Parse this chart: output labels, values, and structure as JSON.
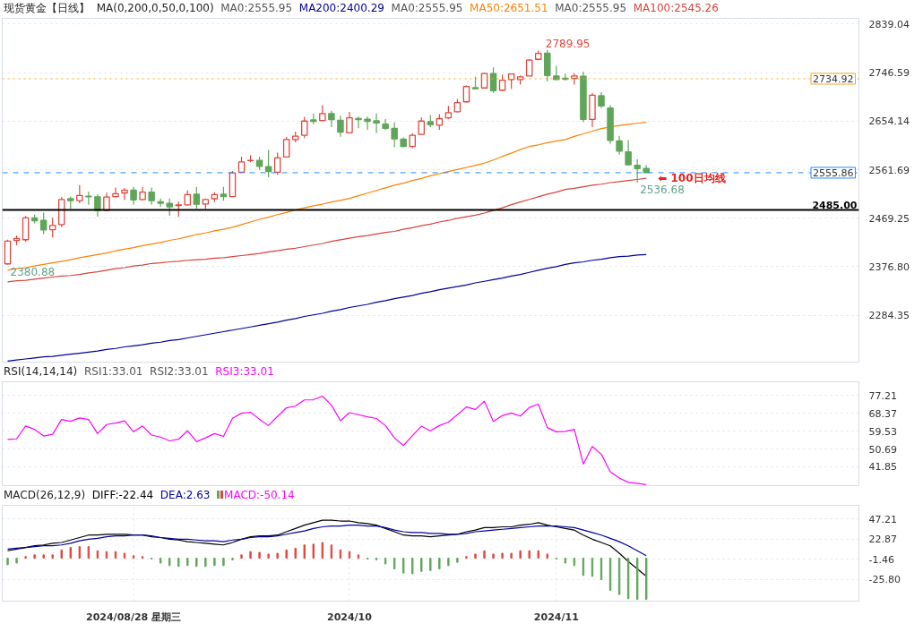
{
  "chart_data": [
    {
      "type": "candlestick",
      "title": "现货黄金【日线】",
      "legend_title": "MA(0,200,0,50,0,100)",
      "legend": "top",
      "tick_labels": "y",
      "grid": true,
      "annotations": [
        "MA0:2555.95",
        "MA0:2555.95",
        "MA0:2555.95",
        "2789.95",
        "2380.88",
        "2536.68",
        "⬅ 100日均线"
      ],
      "categories": [
        null,
        null,
        null,
        null,
        null,
        null,
        null,
        null,
        null,
        null,
        null,
        null,
        null,
        null,
        null,
        null,
        null,
        null,
        null,
        null,
        null,
        null,
        null,
        null,
        null,
        null,
        null,
        null,
        null,
        null,
        null,
        null,
        null,
        null,
        null,
        null,
        null,
        null,
        null,
        null,
        null,
        null,
        null,
        null,
        null,
        null,
        null,
        null,
        null,
        null,
        null,
        null,
        null,
        null,
        null,
        null,
        null,
        null,
        null,
        null,
        null,
        null,
        null,
        null,
        null,
        null,
        null,
        null,
        null,
        null,
        null,
        null
      ],
      "ohlc": [
        [
          2382.2,
          2428.3,
          2380.88,
          2425.6
        ],
        [
          2426.7,
          2436.3,
          2417.7,
          2430.4
        ],
        [
          2428.3,
          2473.4,
          2424.6,
          2469.7
        ],
        [
          2469.7,
          2476.0,
          2459.6,
          2464.4
        ],
        [
          2464.9,
          2479.7,
          2438.9,
          2446.9
        ],
        [
          2447.4,
          2470.2,
          2432.5,
          2455.4
        ],
        [
          2457.0,
          2509.4,
          2452.2,
          2504.7
        ],
        [
          2506.3,
          2510.5,
          2487.2,
          2502.6
        ],
        [
          2502.6,
          2532.3,
          2497.8,
          2512.6
        ],
        [
          2511.0,
          2519.5,
          2494.6,
          2510.0
        ],
        [
          2510.0,
          2514.8,
          2472.3,
          2484.0
        ],
        [
          2484.0,
          2517.9,
          2483.0,
          2509.4
        ],
        [
          2510.5,
          2527.5,
          2508.9,
          2515.8
        ],
        [
          2517.4,
          2526.4,
          2503.6,
          2522.7
        ],
        [
          2522.7,
          2529.1,
          2494.6,
          2504.1
        ],
        [
          2504.7,
          2528.5,
          2503.0,
          2519.0
        ],
        [
          2519.0,
          2527.5,
          2494.6,
          2502.6
        ],
        [
          2500.4,
          2506.8,
          2490.9,
          2497.8
        ],
        [
          2497.3,
          2506.8,
          2473.9,
          2490.9
        ],
        [
          2493.2,
          2501.0,
          2471.8,
          2494.4
        ],
        [
          2494.6,
          2522.7,
          2494.0,
          2514.2
        ],
        [
          2514.8,
          2529.1,
          2487.2,
          2495.7
        ],
        [
          2496.2,
          2506.8,
          2487.2,
          2504.7
        ],
        [
          2506.3,
          2518.5,
          2499.9,
          2514.2
        ],
        [
          2514.8,
          2529.1,
          2502.6,
          2510.5
        ],
        [
          2510.5,
          2559.3,
          2510.0,
          2555.6
        ],
        [
          2556.7,
          2586.4,
          2556.0,
          2576.3
        ],
        [
          2579.0,
          2589.5,
          2575.8,
          2579.4
        ],
        [
          2579.4,
          2586.4,
          2561.4,
          2567.8
        ],
        [
          2567.3,
          2599.1,
          2547.1,
          2558.3
        ],
        [
          2556.7,
          2594.3,
          2551.9,
          2584.2
        ],
        [
          2585.8,
          2624.0,
          2585.0,
          2619.2
        ],
        [
          2619.2,
          2634.1,
          2613.9,
          2625.6
        ],
        [
          2627.2,
          2662.2,
          2621.9,
          2654.3
        ],
        [
          2656.4,
          2668.6,
          2648.4,
          2653.7
        ],
        [
          2655.3,
          2684.5,
          2653.7,
          2668.6
        ],
        [
          2668.6,
          2673.9,
          2642.6,
          2656.9
        ],
        [
          2655.8,
          2664.3,
          2624.5,
          2633.0
        ],
        [
          2632.0,
          2671.7,
          2631.0,
          2660.6
        ],
        [
          2659.0,
          2662.7,
          2640.5,
          2657.0
        ],
        [
          2658.0,
          2662.7,
          2637.8,
          2653.7
        ],
        [
          2654.8,
          2668.6,
          2631.4,
          2650.5
        ],
        [
          2648.4,
          2658.0,
          2637.8,
          2640.5
        ],
        [
          2640.5,
          2651.6,
          2604.4,
          2620.3
        ],
        [
          2619.8,
          2623.0,
          2604.4,
          2606.0
        ],
        [
          2606.0,
          2630.9,
          2602.8,
          2627.2
        ],
        [
          2628.8,
          2661.1,
          2628.0,
          2654.3
        ],
        [
          2653.2,
          2665.9,
          2642.6,
          2647.4
        ],
        [
          2646.3,
          2667.5,
          2637.8,
          2659.0
        ],
        [
          2660.6,
          2683.4,
          2658.0,
          2670.2
        ],
        [
          2671.8,
          2696.1,
          2671.0,
          2689.3
        ],
        [
          2690.9,
          2722.7,
          2690.0,
          2720.0
        ],
        [
          2717.9,
          2738.6,
          2714.7,
          2715.8
        ],
        [
          2717.4,
          2746.5,
          2717.0,
          2744.9
        ],
        [
          2744.9,
          2756.6,
          2707.8,
          2712.1
        ],
        [
          2713.1,
          2742.8,
          2712.0,
          2732.2
        ],
        [
          2733.3,
          2744.0,
          2715.8,
          2743.9
        ],
        [
          2733.3,
          2741.2,
          2723.7,
          2738.6
        ],
        [
          2740.2,
          2772.5,
          2740.0,
          2770.4
        ],
        [
          2772.0,
          2788.4,
          2770.4,
          2783.1
        ],
        [
          2783.6,
          2789.95,
          2730.1,
          2741.2
        ],
        [
          2740.2,
          2759.8,
          2732.2,
          2733.3
        ],
        [
          2735.9,
          2744.9,
          2731.7,
          2733.8
        ],
        [
          2735.4,
          2745.5,
          2723.7,
          2740.2
        ],
        [
          2739.6,
          2748.6,
          2652.1,
          2657.4
        ],
        [
          2657.4,
          2707.8,
          2643.1,
          2703.6
        ],
        [
          2702.5,
          2709.4,
          2679.2,
          2682.9
        ],
        [
          2679.2,
          2684.5,
          2611.3,
          2617.6
        ],
        [
          2616.6,
          2626.1,
          2590.1,
          2597.0
        ],
        [
          2595.4,
          2618.2,
          2570.5,
          2571.0
        ],
        [
          2569.9,
          2581.6,
          2536.68,
          2563.6
        ],
        [
          2564.1,
          2570.4,
          2555.5,
          2555.86
        ]
      ],
      "colors": [
        "#e2463c",
        "#e2463c",
        "#e2463c",
        "#5fa65a",
        "#5fa65a",
        "#e2463c",
        "#e2463c",
        "#5fa65a",
        "#e2463c",
        "#5fa65a",
        "#5fa65a",
        "#e2463c",
        "#e2463c",
        "#e2463c",
        "#5fa65a",
        "#e2463c",
        "#5fa65a",
        "#5fa65a",
        "#5fa65a",
        "#e2463c",
        "#e2463c",
        "#5fa65a",
        "#e2463c",
        "#e2463c",
        "#5fa65a",
        "#e2463c",
        "#e2463c",
        "#e2463c",
        "#5fa65a",
        "#5fa65a",
        "#e2463c",
        "#e2463c",
        "#e2463c",
        "#e2463c",
        "#5fa65a",
        "#e2463c",
        "#5fa65a",
        "#5fa65a",
        "#e2463c",
        "#5fa65a",
        "#5fa65a",
        "#5fa65a",
        "#5fa65a",
        "#5fa65a",
        "#5fa65a",
        "#e2463c",
        "#e2463c",
        "#5fa65a",
        "#e2463c",
        "#e2463c",
        "#e2463c",
        "#e2463c",
        "#5fa65a",
        "#e2463c",
        "#5fa65a",
        "#e2463c",
        "#e2463c",
        "#e2463c",
        "#e2463c",
        "#e2463c",
        "#5fa65a",
        "#5fa65a",
        "#5fa65a",
        "#e2463c",
        "#5fa65a",
        "#e2463c",
        "#5fa65a",
        "#5fa65a",
        "#5fa65a",
        "#5fa65a",
        "#5fa65a",
        "#5fa65a"
      ],
      "series": [
        {
          "name": "MA200:2400.29",
          "type": "line",
          "color": "#000099",
          "values": [
            2197,
            2199,
            2201,
            2203,
            2205,
            2206,
            2208,
            2210,
            2212,
            2214,
            2216,
            2219,
            2221,
            2224,
            2226,
            2228,
            2231,
            2233,
            2236,
            2238,
            2241,
            2244,
            2247,
            2250,
            2253,
            2256,
            2259,
            2262,
            2265,
            2268,
            2271,
            2275,
            2278,
            2282,
            2285,
            2288,
            2292,
            2295,
            2299,
            2302,
            2305,
            2309,
            2312,
            2316,
            2319,
            2322,
            2326,
            2329,
            2333,
            2336,
            2339,
            2342,
            2346,
            2349,
            2352,
            2355,
            2359,
            2362,
            2366,
            2370,
            2374,
            2377,
            2381,
            2384,
            2386,
            2389,
            2391,
            2394,
            2396,
            2397,
            2399,
            2400
          ]
        },
        {
          "name": "MA50:2651.51",
          "type": "line",
          "color": "#ff8000",
          "values": [
            2370,
            2373,
            2375,
            2378,
            2381,
            2384,
            2387,
            2390,
            2394,
            2397,
            2400,
            2403,
            2407,
            2410,
            2413,
            2417,
            2420,
            2423,
            2427,
            2430,
            2434,
            2438,
            2441,
            2445,
            2448,
            2452,
            2457,
            2462,
            2467,
            2471,
            2476,
            2480,
            2485,
            2489,
            2493,
            2496,
            2500,
            2503,
            2507,
            2512,
            2517,
            2522,
            2527,
            2532,
            2536,
            2541,
            2545,
            2550,
            2554,
            2558,
            2562,
            2566,
            2570,
            2574,
            2580,
            2587,
            2593,
            2600,
            2606,
            2609,
            2613,
            2616,
            2619,
            2625,
            2630,
            2635,
            2640,
            2643,
            2646,
            2648,
            2650,
            2652
          ]
        },
        {
          "name": "MA100:2545.26",
          "type": "line",
          "color": "#d9433b",
          "values": [
            2348,
            2350,
            2351,
            2353,
            2355,
            2357,
            2359,
            2360,
            2362,
            2365,
            2367,
            2370,
            2373,
            2375,
            2378,
            2380,
            2383,
            2384,
            2386,
            2387,
            2389,
            2390,
            2391,
            2393,
            2394,
            2396,
            2398,
            2400,
            2402,
            2405,
            2407,
            2410,
            2412,
            2415,
            2418,
            2421,
            2425,
            2428,
            2431,
            2434,
            2436,
            2439,
            2442,
            2444,
            2448,
            2451,
            2455,
            2458,
            2462,
            2465,
            2469,
            2472,
            2475,
            2479,
            2484,
            2489,
            2495,
            2500,
            2505,
            2510,
            2515,
            2519,
            2524,
            2526,
            2529,
            2532,
            2534,
            2537,
            2539,
            2541,
            2543,
            2545.3
          ]
        }
      ],
      "ylim": [
        2195,
        2850
      ],
      "yticks": [
        2284.35,
        {
          "value": 2376.8,
          "label": "2376.80"
        },
        2469.25,
        2561.69,
        2654.14,
        2746.59,
        2839.04
      ],
      "ref_lines": [
        {
          "axis": "y",
          "value": 2485,
          "label": "2485.00",
          "color": "#000000",
          "line_style": "solid"
        },
        {
          "axis": "y",
          "value": 2555.86,
          "label": "2555.86",
          "color": "#1e8cff",
          "line_style": "dashed"
        },
        {
          "axis": "y",
          "value": 2734.92,
          "label": "2734.92",
          "color": "#f5a623",
          "line_style": "dotted"
        }
      ]
    },
    {
      "type": "line",
      "title": "RSI(14,14,14)",
      "legend": "top",
      "tick_labels": "y",
      "grid": true,
      "annotations": [
        "RSI1:33.01",
        "RSI2:33.01"
      ],
      "categories": [
        null,
        null,
        null,
        null,
        null,
        null,
        null,
        null,
        null,
        null,
        null,
        null,
        null,
        null,
        null,
        null,
        null,
        null,
        null,
        null,
        null,
        null,
        null,
        null,
        null,
        null,
        null,
        null,
        null,
        null,
        null,
        null,
        null,
        null,
        null,
        null,
        null,
        null,
        null,
        null,
        null,
        null,
        null,
        null,
        null,
        null,
        null,
        null,
        null,
        null,
        null,
        null,
        null,
        null,
        null,
        null,
        null,
        null,
        null,
        null,
        null,
        null,
        null,
        null,
        null,
        null,
        null,
        null,
        null,
        null,
        null,
        null
      ],
      "series": [
        {
          "name": "RSI3:33.01",
          "color": "#ff00ff",
          "values": [
            55.4,
            55.7,
            62.1,
            60.4,
            57.1,
            58.0,
            65.3,
            64.4,
            66.1,
            65.3,
            58.3,
            62.8,
            63.5,
            64.6,
            59.2,
            62.1,
            57.6,
            56.6,
            54.7,
            55.5,
            59.7,
            54.3,
            56.2,
            58.3,
            56.9,
            65.9,
            68.4,
            68.9,
            65.4,
            62.3,
            66.8,
            71.1,
            72.0,
            75.0,
            75.1,
            76.9,
            72.4,
            64.7,
            68.7,
            67.7,
            66.6,
            65.8,
            62.3,
            56.2,
            52.4,
            57.3,
            62.0,
            59.7,
            62.3,
            64.0,
            67.7,
            71.5,
            70.3,
            74.4,
            64.4,
            67.2,
            68.5,
            67.0,
            71.3,
            72.9,
            61.3,
            59.2,
            59.4,
            60.4,
            43.2,
            51.9,
            48.1,
            39.4,
            36.3,
            34.1,
            33.7,
            33.0
          ]
        }
      ],
      "ylim": [
        32.5,
        84
      ],
      "yticks": [
        41.85,
        50.69,
        59.53,
        68.37,
        77.21
      ]
    },
    {
      "type": "line",
      "title": "MACD(26,12,9)",
      "legend": "top",
      "grid": true,
      "categories": [
        null,
        null,
        null,
        null,
        null,
        null,
        null,
        null,
        null,
        null,
        null,
        null,
        null,
        null,
        "2024/08/28 星期三",
        null,
        null,
        null,
        null,
        null,
        null,
        null,
        null,
        null,
        null,
        null,
        null,
        null,
        null,
        null,
        null,
        null,
        null,
        null,
        null,
        null,
        null,
        null,
        "2024/10",
        null,
        null,
        null,
        null,
        null,
        null,
        null,
        null,
        null,
        null,
        null,
        null,
        null,
        null,
        null,
        null,
        null,
        null,
        null,
        null,
        null,
        null,
        "2024/11",
        null,
        null,
        null,
        null,
        null,
        null,
        null,
        null,
        null,
        null
      ],
      "series": [
        {
          "name": "DIFF:-22.44",
          "type": "line",
          "color": "#000000",
          "values": [
            9,
            11,
            13,
            15,
            16,
            18,
            19,
            22,
            25,
            28,
            28,
            29,
            29,
            29,
            28,
            28,
            26,
            25,
            23,
            22,
            20,
            19,
            18,
            17,
            16,
            19,
            23,
            26,
            27,
            27,
            28,
            32,
            36,
            40,
            43,
            46,
            46,
            45,
            45,
            43,
            42,
            40,
            36,
            32,
            28,
            27,
            27,
            26,
            27,
            28,
            29,
            32,
            34,
            37,
            37,
            38,
            38,
            40,
            41,
            43,
            40,
            38,
            36,
            34,
            28,
            23,
            19,
            15,
            6,
            -4,
            -13,
            -22
          ]
        },
        {
          "name": "DEA:2.63",
          "type": "line",
          "color": "#000099",
          "values": [
            11,
            12,
            13,
            14,
            15,
            15,
            16,
            18,
            21,
            23,
            24,
            26,
            27,
            27,
            28,
            28,
            27,
            25,
            24,
            23,
            23,
            22,
            21,
            21,
            20,
            22,
            23,
            25,
            26,
            26,
            27,
            29,
            31,
            33,
            36,
            38,
            39,
            39,
            40,
            40,
            39,
            39,
            37,
            34,
            32,
            31,
            31,
            30,
            30,
            29,
            29,
            30,
            32,
            33,
            34,
            35,
            36,
            37,
            38,
            39,
            39,
            39,
            38,
            37,
            34,
            31,
            28,
            24,
            20,
            15,
            9,
            3
          ]
        },
        {
          "name": "MACD:-50.14",
          "type": "bar",
          "color": "#ff00ff",
          "values": [
            -8,
            -6,
            2,
            4,
            4,
            4,
            10,
            13,
            14,
            14,
            9,
            8,
            8,
            6,
            3,
            2,
            -1,
            -6,
            -9,
            -10,
            -9,
            -10,
            -10,
            -9,
            -9,
            -2,
            4,
            8,
            7,
            5,
            6,
            10,
            12,
            16,
            17,
            19,
            16,
            10,
            8,
            4,
            -1,
            -2,
            -7,
            -13,
            -18,
            -19,
            -16,
            -15,
            -13,
            -9,
            -5,
            2,
            5,
            9,
            5,
            6,
            6,
            9,
            9,
            9,
            5,
            -1,
            -6,
            -9,
            -21,
            -22,
            -26,
            -39,
            -44,
            -49,
            -50,
            -50
          ],
          "colors": [
            "#5fa65a",
            "#5fa65a",
            "#e2463c",
            "#e2463c",
            "#e2463c",
            "#e2463c",
            "#e2463c",
            "#e2463c",
            "#e2463c",
            "#e2463c",
            "#e2463c",
            "#e2463c",
            "#e2463c",
            "#e2463c",
            "#e2463c",
            "#e2463c",
            "#5fa65a",
            "#5fa65a",
            "#5fa65a",
            "#5fa65a",
            "#5fa65a",
            "#5fa65a",
            "#5fa65a",
            "#5fa65a",
            "#5fa65a",
            "#5fa65a",
            "#e2463c",
            "#e2463c",
            "#e2463c",
            "#e2463c",
            "#e2463c",
            "#e2463c",
            "#e2463c",
            "#e2463c",
            "#e2463c",
            "#e2463c",
            "#e2463c",
            "#e2463c",
            "#e2463c",
            "#e2463c",
            "#5fa65a",
            "#5fa65a",
            "#5fa65a",
            "#5fa65a",
            "#5fa65a",
            "#5fa65a",
            "#5fa65a",
            "#5fa65a",
            "#5fa65a",
            "#5fa65a",
            "#5fa65a",
            "#e2463c",
            "#e2463c",
            "#e2463c",
            "#e2463c",
            "#e2463c",
            "#e2463c",
            "#e2463c",
            "#e2463c",
            "#e2463c",
            "#e2463c",
            "#5fa65a",
            "#5fa65a",
            "#5fa65a",
            "#5fa65a",
            "#5fa65a",
            "#5fa65a",
            "#5fa65a",
            "#5fa65a",
            "#5fa65a",
            "#5fa65a",
            "#5fa65a"
          ]
        }
      ],
      "ylim": [
        -52,
        64
      ],
      "yticks": [
        47.21,
        22.87,
        -1.46,
        {
          "value": -25.8,
          "label": "-25.80"
        }
      ]
    }
  ]
}
